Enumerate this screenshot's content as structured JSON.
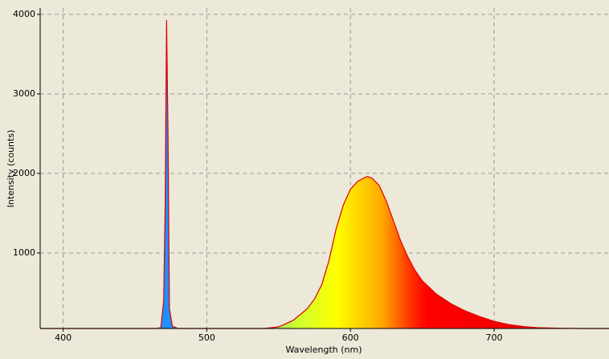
{
  "chart_data": {
    "type": "line",
    "x_label": "Wavelength (nm)",
    "y_label": "Intensity (counts)",
    "x": [
      384,
      400,
      450,
      465,
      468,
      470,
      471,
      472,
      473,
      474,
      476,
      480,
      500,
      540,
      550,
      560,
      570,
      575,
      580,
      585,
      590,
      595,
      600,
      605,
      610,
      612,
      615,
      620,
      625,
      630,
      635,
      640,
      645,
      650,
      660,
      670,
      680,
      690,
      700,
      710,
      720,
      730,
      740,
      750,
      760,
      780
    ],
    "values": [
      50,
      50,
      50,
      50,
      60,
      400,
      1600,
      3930,
      2500,
      300,
      80,
      50,
      50,
      50,
      70,
      150,
      300,
      420,
      600,
      900,
      1300,
      1600,
      1800,
      1900,
      1950,
      1960,
      1940,
      1850,
      1650,
      1400,
      1150,
      950,
      780,
      650,
      480,
      360,
      270,
      200,
      140,
      100,
      75,
      60,
      55,
      52,
      50,
      50
    ],
    "color": "#e00000",
    "xlim": [
      384,
      780
    ],
    "ylim": [
      50,
      4080
    ],
    "xticks": [
      400,
      500,
      600,
      700
    ],
    "yticks": [
      1000,
      2000,
      3000,
      4000
    ],
    "grid": true
  }
}
